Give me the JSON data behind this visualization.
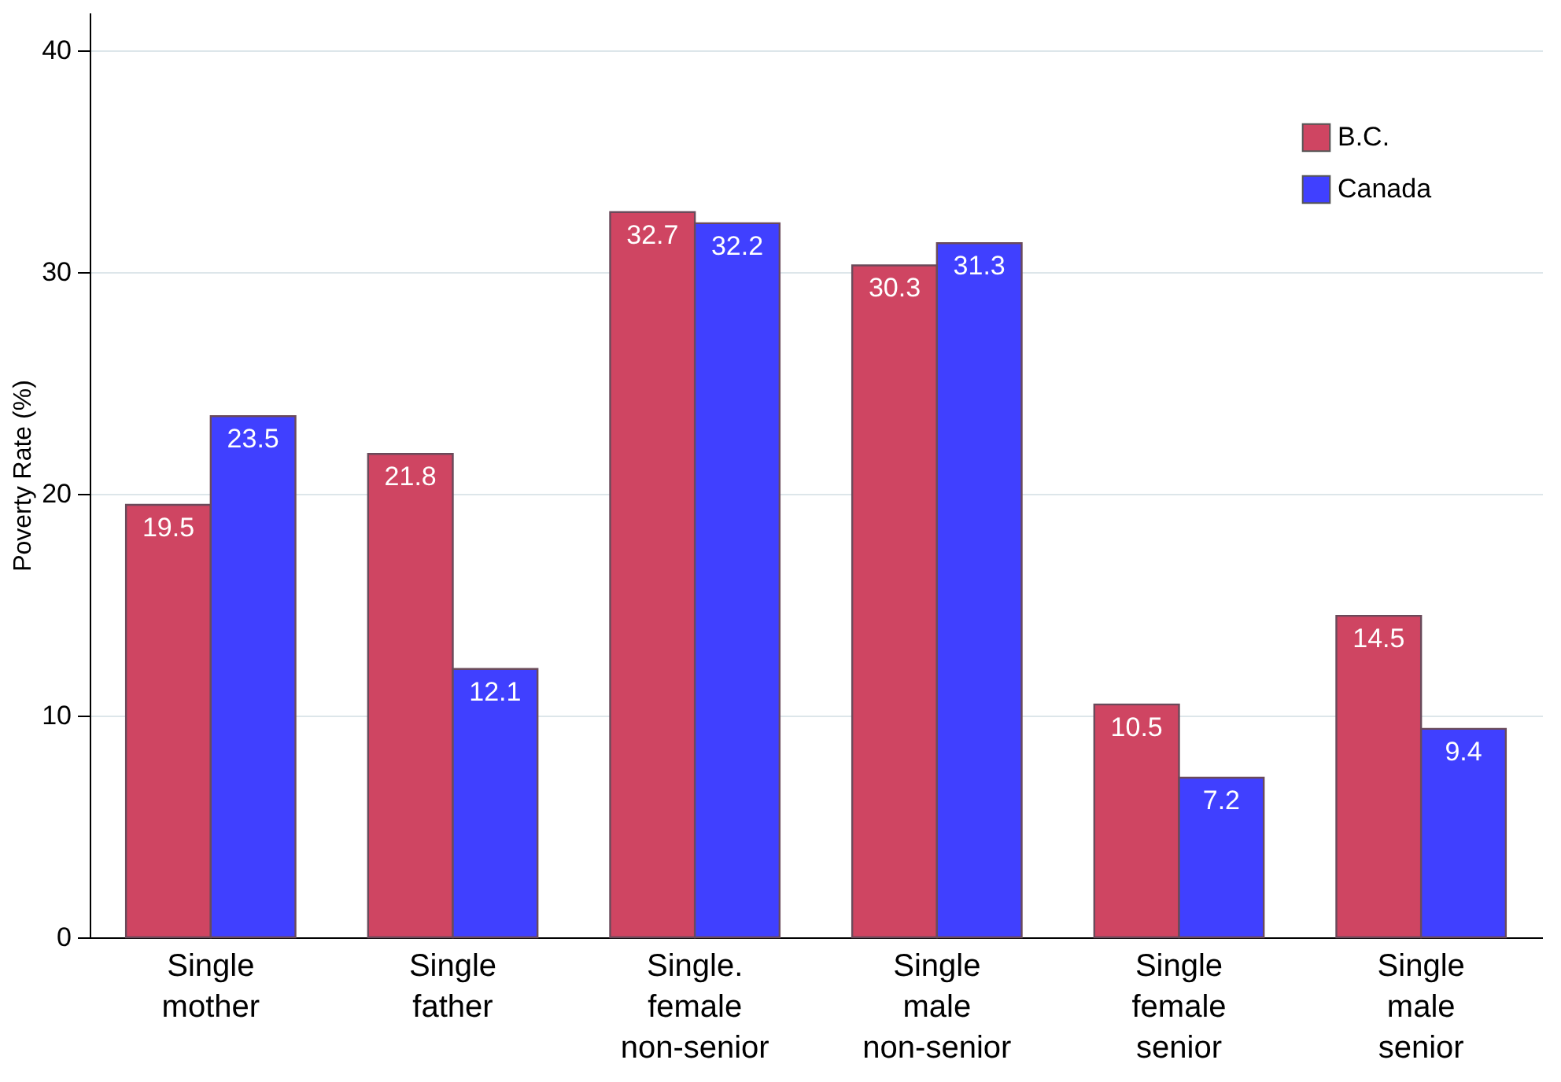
{
  "chart_data": {
    "type": "bar",
    "ylabel": "Poverty Rate (%)",
    "categories": [
      "Single mother",
      "Single father",
      "Single. female non-senior",
      "Single male non-senior",
      "Single female senior",
      "Single male senior"
    ],
    "series": [
      {
        "name": "B.C.",
        "color": "#cf4562",
        "values": [
          19.5,
          21.8,
          32.7,
          30.3,
          10.5,
          14.5
        ]
      },
      {
        "name": "Canada",
        "color": "#4040ff",
        "values": [
          23.5,
          12.1,
          32.2,
          31.3,
          7.2,
          9.4
        ]
      }
    ],
    "ylim": [
      0,
      41.7
    ],
    "yticks": [
      0,
      10,
      20,
      30,
      40
    ],
    "grid": "y",
    "legend": "top right",
    "data_labels": true
  }
}
